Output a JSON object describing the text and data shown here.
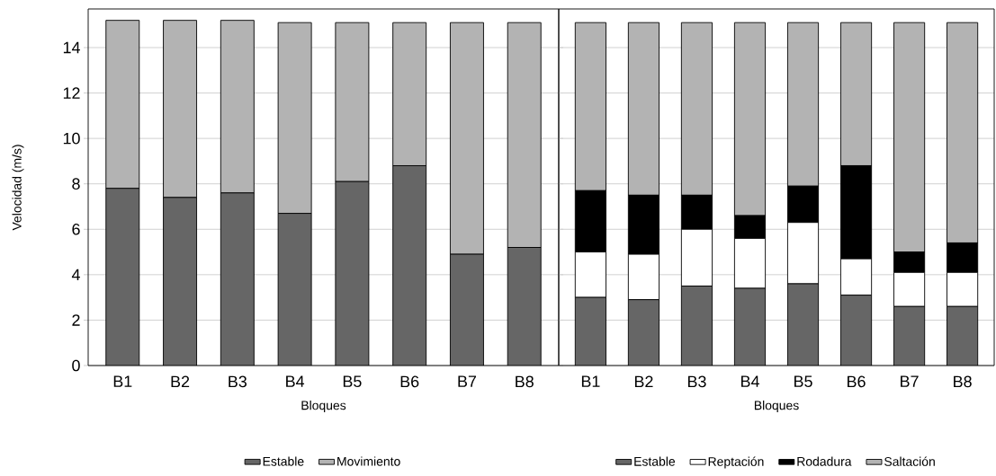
{
  "chart_data": [
    {
      "type": "bar",
      "stacked": true,
      "ylabel": "Velocidad (m/s)",
      "xlabel": "Bloques",
      "categories": [
        "B1",
        "B2",
        "B3",
        "B4",
        "B5",
        "B6",
        "B7",
        "B8"
      ],
      "series": [
        {
          "name": "Estable",
          "color": "#666666",
          "values": [
            7.8,
            7.4,
            7.6,
            6.7,
            8.1,
            8.8,
            4.9,
            5.2
          ]
        },
        {
          "name": "Movimiento",
          "color": "#b3b3b3",
          "values": [
            7.4,
            7.8,
            7.6,
            8.4,
            7.0,
            6.3,
            10.2,
            9.9
          ]
        }
      ],
      "ylim": [
        0,
        15.7
      ],
      "yticks": [
        0,
        2,
        4,
        6,
        8,
        10,
        12,
        14
      ],
      "grid": "y",
      "legend": "bottom"
    },
    {
      "type": "bar",
      "stacked": true,
      "xlabel": "Bloques",
      "categories": [
        "B1",
        "B2",
        "B3",
        "B4",
        "B5",
        "B6",
        "B7",
        "B8"
      ],
      "series": [
        {
          "name": "Estable",
          "color": "#666666",
          "values": [
            3.0,
            2.9,
            3.5,
            3.4,
            3.6,
            3.1,
            2.6,
            2.6
          ]
        },
        {
          "name": "Reptación",
          "color": "#ffffff",
          "values": [
            2.0,
            2.0,
            2.5,
            2.2,
            2.7,
            1.6,
            1.5,
            1.5
          ]
        },
        {
          "name": "Rodadura",
          "color": "#000000",
          "values": [
            2.7,
            2.6,
            1.5,
            1.0,
            1.6,
            4.1,
            0.9,
            1.3
          ]
        },
        {
          "name": "Saltación",
          "color": "#b3b3b3",
          "values": [
            7.4,
            7.6,
            7.6,
            8.5,
            7.2,
            6.3,
            10.1,
            9.7
          ]
        }
      ],
      "ylim": [
        0,
        15.7
      ],
      "yticks": [
        0,
        2,
        4,
        6,
        8,
        10,
        12,
        14
      ],
      "grid": "y",
      "legend": "bottom",
      "tick_labels": "x"
    }
  ]
}
